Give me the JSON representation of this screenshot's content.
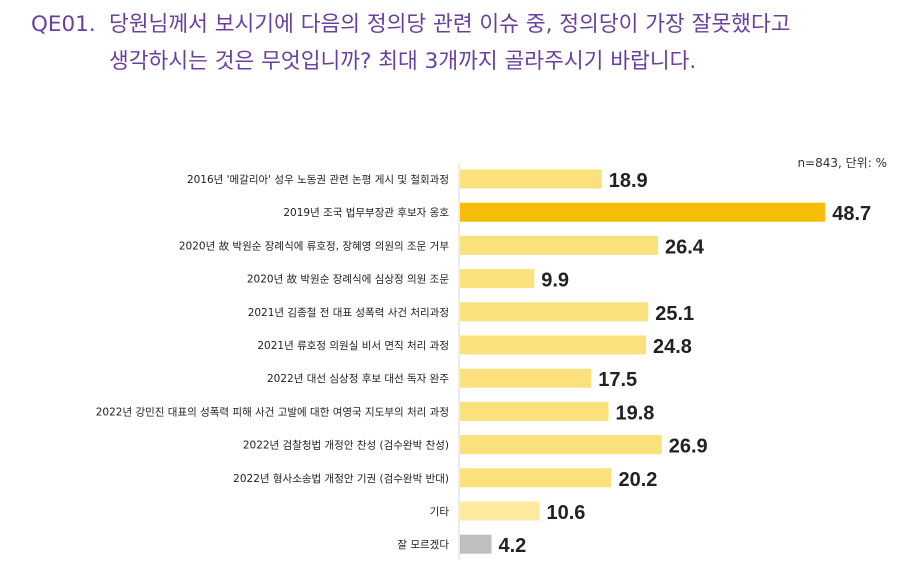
{
  "question": {
    "code": "QE01.",
    "text": "당원님께서 보시기에 다음의 정의당 관련 이슈 중, 정의당이 가장 잘못했다고 생각하시는 것은 무엇입니까? 최대 3개까지 골라주시기 바랍니다."
  },
  "meta": "n=843, 단위: %",
  "colors": {
    "question_text": "#6a3fa0",
    "bar_default": "#fbe17c",
    "bar_highlight": "#f5bd07",
    "bar_other": "#fde9a0",
    "bar_unknown": "#bfbfbf",
    "axis_line": "#d9d9d9",
    "value_text": "#222222",
    "label_text": "#222222"
  },
  "chart_data": {
    "type": "bar",
    "orientation": "horizontal",
    "unit": "%",
    "xlim": [
      0,
      50
    ],
    "grid": false,
    "legend": "none",
    "categories": [
      "2016년 '메갈리아' 성우 노동권 관련 논평 게시 및 철회과정",
      "2019년 조국 법무부장관 후보자 옹호",
      "2020년 故 박원순 장례식에 류호정, 장혜영 의원의 조문 거부",
      "2020년 故 박원순 장례식에 심상정 의원 조문",
      "2021년 김종철 전 대표 성폭력 사건 처리과정",
      "2021년 류호정 의원실 비서 면직 처리 과정",
      "2022년 대선 심상정 후보 대선 독자 완주",
      "2022년 강민진 대표의 성폭력 피해 사건 고발에 대한 여영국 지도부의 처리 과정",
      "2022년 검찰청법 개정안 찬성 (검수완박 찬성)",
      "2022년 형사소송법 개정안 기권 (검수완박 반대)",
      "기타",
      "잘 모르겠다"
    ],
    "values": [
      18.9,
      48.7,
      26.4,
      9.9,
      25.1,
      24.8,
      17.5,
      19.8,
      26.9,
      20.2,
      10.6,
      4.2
    ],
    "value_labels": [
      "18.9",
      "48.7",
      "26.4",
      "9.9",
      "25.1",
      "24.8",
      "17.5",
      "19.8",
      "26.9",
      "20.2",
      "10.6",
      "4.2"
    ],
    "bar_color_keys": [
      "bar_default",
      "bar_highlight",
      "bar_default",
      "bar_default",
      "bar_default",
      "bar_default",
      "bar_default",
      "bar_default",
      "bar_default",
      "bar_default",
      "bar_other",
      "bar_unknown"
    ]
  }
}
